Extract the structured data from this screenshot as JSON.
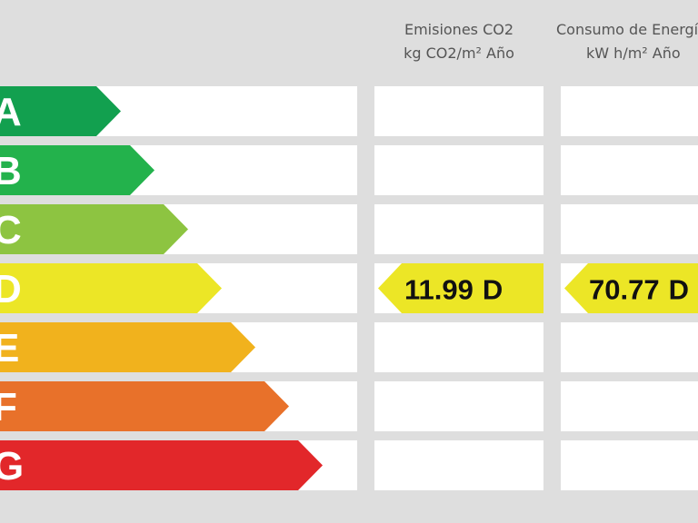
{
  "classes": [
    {
      "letter": "A",
      "color": "#12a04f"
    },
    {
      "letter": "B",
      "color": "#23b24c"
    },
    {
      "letter": "C",
      "color": "#8dc441"
    },
    {
      "letter": "D",
      "color": "#ece626"
    },
    {
      "letter": "E",
      "color": "#f1b21d"
    },
    {
      "letter": "F",
      "color": "#e8712a"
    },
    {
      "letter": "G",
      "color": "#e2272a"
    }
  ],
  "columns": [
    {
      "title": "Emisiones CO2",
      "unit": "kg CO2/m² Año",
      "value": 11.99,
      "rating": "D"
    },
    {
      "title": "Consumo de Energía",
      "unit": "kW h/m² Año",
      "value": 70.77,
      "rating": "D"
    }
  ]
}
